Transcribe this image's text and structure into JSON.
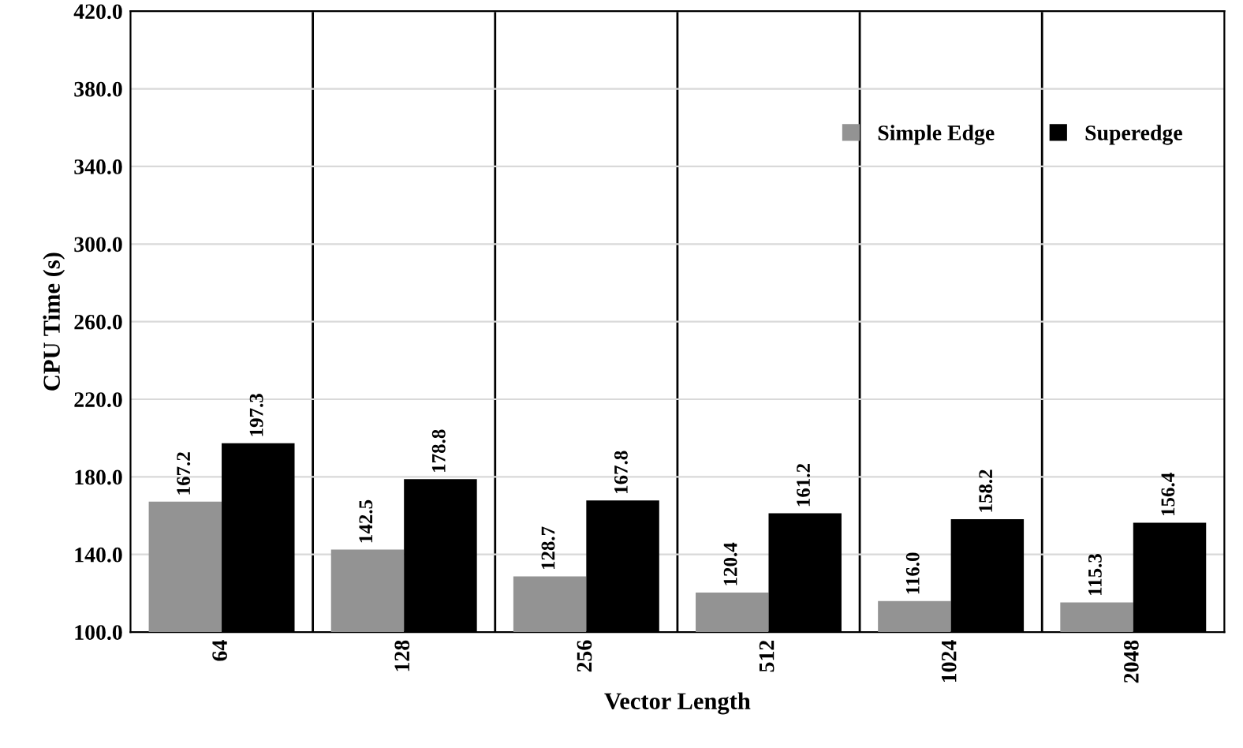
{
  "chart_data": {
    "type": "bar",
    "xlabel": "Vector Length",
    "ylabel": "CPU Time (s)",
    "categories": [
      "64",
      "128",
      "256",
      "512",
      "1024",
      "2048"
    ],
    "series": [
      {
        "name": "Simple Edge",
        "color": "#939393",
        "values": [
          167.2,
          142.5,
          128.7,
          120.4,
          116.0,
          115.3
        ],
        "value_labels": [
          "167.2",
          "142.5",
          "128.7",
          "120.4",
          "116.0",
          "115.3"
        ]
      },
      {
        "name": "Superedge",
        "color": "#000000",
        "values": [
          197.3,
          178.8,
          167.8,
          161.2,
          158.2,
          156.4
        ],
        "value_labels": [
          "197.3",
          "178.8",
          "167.8",
          "161.2",
          "158.2",
          "156.4"
        ]
      }
    ],
    "ylim": [
      100,
      420
    ],
    "yticks": [
      {
        "value": 100,
        "label": "100.0"
      },
      {
        "value": 140,
        "label": "140.0"
      },
      {
        "value": 180,
        "label": "180.0"
      },
      {
        "value": 220,
        "label": "220.0"
      },
      {
        "value": 260,
        "label": "260.0"
      },
      {
        "value": 300,
        "label": "300.0"
      },
      {
        "value": 340,
        "label": "340.0"
      },
      {
        "value": 380,
        "label": "380.0"
      },
      {
        "value": 420,
        "label": "420.0"
      }
    ],
    "grid": "y",
    "legend": "top right"
  }
}
